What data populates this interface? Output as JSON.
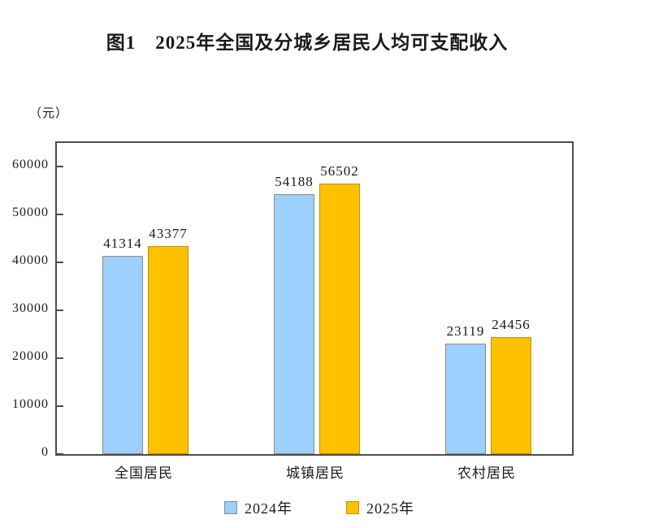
{
  "title": "图1　2025年全国及分城乡居民人均可支配收入",
  "unit_label": "（元）",
  "chart_data": {
    "type": "bar",
    "title": "图1　2025年全国及分城乡居民人均可支配收入",
    "ylabel": "（元）",
    "xlabel": "",
    "categories": [
      "全国居民",
      "城镇居民",
      "农村居民"
    ],
    "series": [
      {
        "name": "2024年",
        "values": [
          41314,
          54188,
          23119
        ],
        "fill_color": "#9DCFFF",
        "border_color": "#8C8C8C"
      },
      {
        "name": "2025年",
        "values": [
          43377,
          56502,
          24456
        ],
        "fill_color": "#FFC000",
        "border_color": "#BF9000"
      }
    ],
    "bar_value_labels": [
      [
        "41314",
        "54188",
        "23119"
      ],
      [
        "43377",
        "56502",
        "24456"
      ]
    ],
    "yticks": [
      0,
      10000,
      20000,
      30000,
      40000,
      50000,
      60000
    ],
    "ylim": [
      0,
      64900
    ],
    "grid": false,
    "legend_position": "bottom",
    "axis_border_color": "#4d4d4d"
  }
}
